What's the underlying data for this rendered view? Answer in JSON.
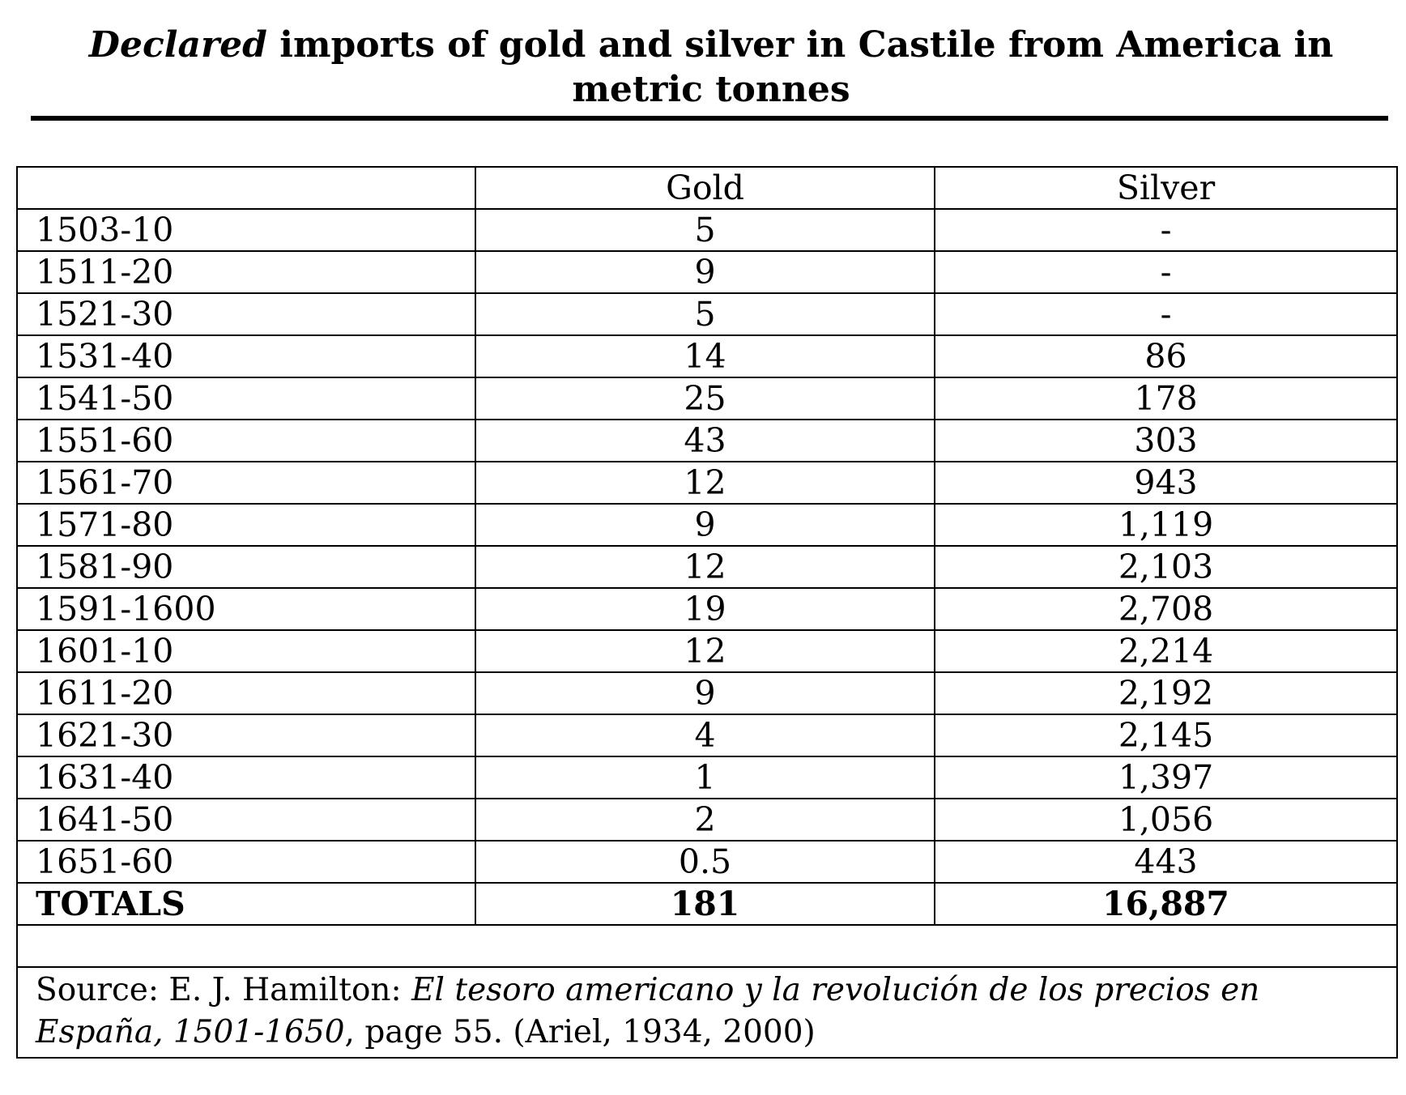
{
  "title": {
    "italic": "Declared",
    "rest": " imports of gold and silver in Castile from America in metric tonnes"
  },
  "table": {
    "headers": [
      "",
      "Gold",
      "Silver"
    ],
    "rows": [
      {
        "period": "1503-10",
        "gold": "5",
        "silver": "-"
      },
      {
        "period": "1511-20",
        "gold": "9",
        "silver": "-"
      },
      {
        "period": "1521-30",
        "gold": "5",
        "silver": "-"
      },
      {
        "period": "1531-40",
        "gold": "14",
        "silver": "86"
      },
      {
        "period": "1541-50",
        "gold": "25",
        "silver": "178"
      },
      {
        "period": "1551-60",
        "gold": "43",
        "silver": "303"
      },
      {
        "period": "1561-70",
        "gold": "12",
        "silver": "943"
      },
      {
        "period": "1571-80",
        "gold": "9",
        "silver": "1,119"
      },
      {
        "period": "1581-90",
        "gold": "12",
        "silver": "2,103"
      },
      {
        "period": "1591-1600",
        "gold": "19",
        "silver": "2,708"
      },
      {
        "period": "1601-10",
        "gold": "12",
        "silver": "2,214"
      },
      {
        "period": "1611-20",
        "gold": "9",
        "silver": "2,192"
      },
      {
        "period": "1621-30",
        "gold": "4",
        "silver": "2,145"
      },
      {
        "period": "1631-40",
        "gold": "1",
        "silver": "1,397"
      },
      {
        "period": "1641-50",
        "gold": "2",
        "silver": "1,056"
      },
      {
        "period": "1651-60",
        "gold": "0.5",
        "silver": "443"
      }
    ],
    "totals": {
      "label": "TOTALS",
      "gold": "181",
      "silver": "16,887"
    }
  },
  "source": {
    "prefix": "Source: E. J.  Hamilton: ",
    "book_title": "El tesoro americano y la revolución de los precios en España, 1501-1650",
    "suffix": ", page 55. (Ariel, 1934, 2000)"
  }
}
